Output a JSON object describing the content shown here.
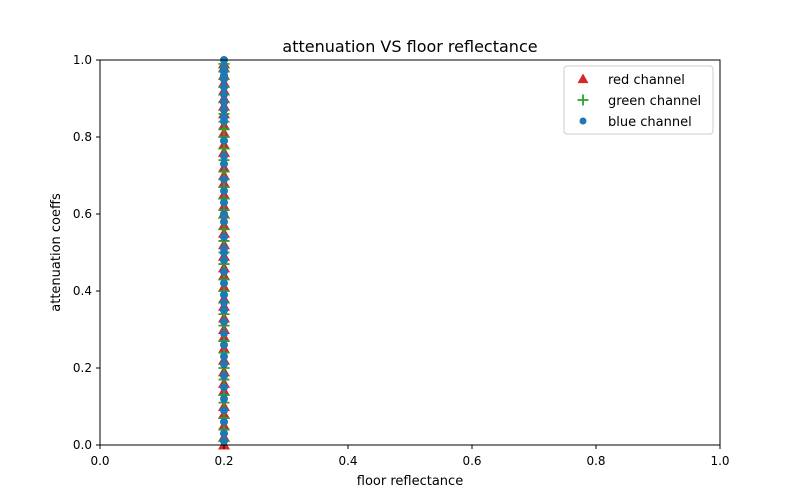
{
  "chart_data": {
    "type": "scatter",
    "title": "attenuation VS floor reflectance",
    "xlabel": "floor reflectance",
    "ylabel": "attenuation coeffs",
    "xlim": [
      0.0,
      1.0
    ],
    "ylim": [
      0.0,
      1.0
    ],
    "xticks": [
      "0.0",
      "0.2",
      "0.4",
      "0.6",
      "0.8",
      "1.0"
    ],
    "yticks": [
      "0.0",
      "0.2",
      "0.4",
      "0.6",
      "0.8",
      "1.0"
    ],
    "grid": false,
    "legend_position": "top-right",
    "series": [
      {
        "name": "red channel",
        "marker": "triangle",
        "color": "#d62728",
        "x": [
          0.2,
          0.2,
          0.2,
          0.2,
          0.2,
          0.2,
          0.2,
          0.2,
          0.2,
          0.2,
          0.2,
          0.2,
          0.2,
          0.2,
          0.2,
          0.2,
          0.2,
          0.2,
          0.2,
          0.2,
          0.2,
          0.2,
          0.2,
          0.2,
          0.2,
          0.2,
          0.2,
          0.2,
          0.2,
          0.2,
          0.2,
          0.2,
          0.2,
          0.2,
          0.2,
          0.2,
          0.2,
          0.2,
          0.2,
          0.2
        ],
        "y": [
          0.0,
          0.02,
          0.05,
          0.08,
          0.1,
          0.14,
          0.16,
          0.19,
          0.22,
          0.25,
          0.28,
          0.3,
          0.33,
          0.36,
          0.38,
          0.41,
          0.44,
          0.46,
          0.49,
          0.52,
          0.55,
          0.57,
          0.6,
          0.62,
          0.65,
          0.68,
          0.7,
          0.72,
          0.76,
          0.78,
          0.81,
          0.83,
          0.86,
          0.88,
          0.9,
          0.92,
          0.94,
          0.96,
          0.98,
          0.99
        ]
      },
      {
        "name": "green channel",
        "marker": "plus",
        "color": "#2ca02c",
        "x": [
          0.2,
          0.2,
          0.2,
          0.2,
          0.2,
          0.2,
          0.2,
          0.2,
          0.2,
          0.2,
          0.2,
          0.2,
          0.2,
          0.2,
          0.2,
          0.2,
          0.2,
          0.2,
          0.2,
          0.2,
          0.2,
          0.2,
          0.2,
          0.2,
          0.2,
          0.2,
          0.2,
          0.2,
          0.2,
          0.2,
          0.2,
          0.2,
          0.2,
          0.2,
          0.2,
          0.2
        ],
        "y": [
          0.01,
          0.04,
          0.07,
          0.11,
          0.13,
          0.17,
          0.2,
          0.24,
          0.27,
          0.31,
          0.34,
          0.37,
          0.4,
          0.43,
          0.47,
          0.5,
          0.53,
          0.56,
          0.59,
          0.61,
          0.64,
          0.67,
          0.69,
          0.71,
          0.74,
          0.77,
          0.8,
          0.82,
          0.84,
          0.86,
          0.89,
          0.91,
          0.93,
          0.95,
          0.97,
          0.99
        ]
      },
      {
        "name": "blue channel",
        "marker": "circle",
        "color": "#1f77b4",
        "x": [
          0.2,
          0.2,
          0.2,
          0.2,
          0.2,
          0.2,
          0.2,
          0.2,
          0.2,
          0.2,
          0.2,
          0.2,
          0.2,
          0.2,
          0.2,
          0.2,
          0.2,
          0.2,
          0.2,
          0.2,
          0.2,
          0.2,
          0.2,
          0.2,
          0.2,
          0.2,
          0.2,
          0.2,
          0.2,
          0.2,
          0.2,
          0.2,
          0.2,
          0.2,
          0.2,
          0.2,
          0.2,
          0.2,
          0.2,
          0.2
        ],
        "y": [
          0.01,
          0.03,
          0.06,
          0.09,
          0.12,
          0.15,
          0.18,
          0.21,
          0.23,
          0.26,
          0.29,
          0.32,
          0.35,
          0.37,
          0.39,
          0.42,
          0.45,
          0.48,
          0.5,
          0.51,
          0.54,
          0.58,
          0.6,
          0.63,
          0.66,
          0.69,
          0.73,
          0.75,
          0.79,
          0.84,
          0.85,
          0.87,
          0.89,
          0.91,
          0.93,
          0.95,
          0.96,
          0.97,
          0.98,
          1.0
        ]
      }
    ]
  }
}
